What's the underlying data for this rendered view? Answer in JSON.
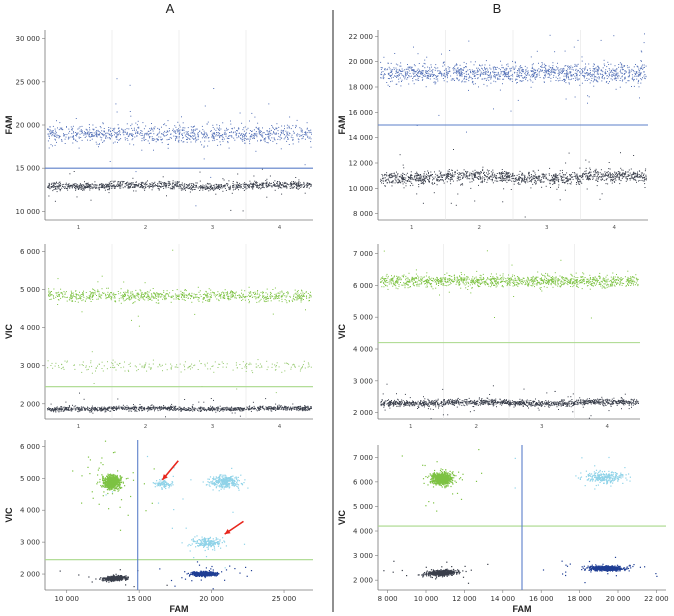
{
  "panel_titles": [
    "A",
    "B"
  ],
  "colors": {
    "fam_positive": "#5673b8",
    "vic_positive": "#7dc243",
    "double_positive": "#8fd3e8",
    "negative": "#3a3f4b",
    "fam_only": "#1f3e94",
    "threshold_fam": "#5b7fc9",
    "threshold_vic": "#a8d88a",
    "arrow": "#e8261c"
  },
  "chart_data": [
    {
      "id": "A-fam",
      "type": "scatter",
      "panel": "A",
      "ylabel": "FAM",
      "ylim": [
        9000,
        31000
      ],
      "yticks": [
        10000,
        15000,
        20000,
        25000,
        30000
      ],
      "ytick_labels": [
        "10 000",
        "15 000",
        "20 000",
        "25 000",
        "30 000"
      ],
      "xtick_labels": [
        "1",
        "2",
        "3",
        "4"
      ],
      "threshold": 15000,
      "series": [
        {
          "name": "positive",
          "color": "#5673b8",
          "center": 19000,
          "spread": 1000,
          "count": 1000
        },
        {
          "name": "negative",
          "color": "#3a3f4b",
          "center": 13000,
          "spread": 400,
          "count": 1100
        }
      ]
    },
    {
      "id": "A-vic",
      "type": "scatter",
      "panel": "A",
      "ylabel": "VIC",
      "ylim": [
        1600,
        6200
      ],
      "yticks": [
        2000,
        3000,
        4000,
        5000,
        6000
      ],
      "ytick_labels": [
        "2 000",
        "3 000",
        "4 000",
        "5 000",
        "6 000"
      ],
      "xtick_labels": [
        "1",
        "2",
        "3",
        "4"
      ],
      "threshold": 2450,
      "series": [
        {
          "name": "vic-positive",
          "color": "#7dc243",
          "center": 4850,
          "spread": 140,
          "count": 850
        },
        {
          "name": "double-positive",
          "color": "#92c76a",
          "center": 3000,
          "spread": 140,
          "count": 220
        },
        {
          "name": "negative",
          "color": "#3a3f4b",
          "center": 1880,
          "spread": 55,
          "count": 1100
        }
      ]
    },
    {
      "id": "A-2d",
      "type": "scatter",
      "panel": "A",
      "xlabel": "FAM",
      "ylabel": "VIC",
      "xlim": [
        8500,
        27000
      ],
      "ylim": [
        1500,
        6200
      ],
      "xticks": [
        10000,
        15000,
        20000,
        25000
      ],
      "xtick_labels": [
        "10 000",
        "15 000",
        "20 000",
        "25 000"
      ],
      "yticks": [
        2000,
        3000,
        4000,
        5000,
        6000
      ],
      "ytick_labels": [
        "2 000",
        "3 000",
        "4 000",
        "5 000",
        "6 000"
      ],
      "threshold_x": 14900,
      "threshold_y": 2450,
      "clusters": [
        {
          "name": "vic-only",
          "color": "#7dc243",
          "x": 13100,
          "y": 4900,
          "sx": 500,
          "sy": 180,
          "count": 700
        },
        {
          "name": "double-upper",
          "color": "#8fd3e8",
          "x": 16600,
          "y": 4850,
          "sx": 500,
          "sy": 120,
          "count": 100
        },
        {
          "name": "double-right",
          "color": "#8fd3e8",
          "x": 20900,
          "y": 4900,
          "sx": 900,
          "sy": 170,
          "count": 300
        },
        {
          "name": "double-lower",
          "color": "#8fd3e8",
          "x": 19700,
          "y": 3000,
          "sx": 800,
          "sy": 150,
          "count": 200
        },
        {
          "name": "negative",
          "color": "#3a3f4b",
          "x": 13300,
          "y": 1880,
          "sx": 600,
          "sy": 55,
          "count": 500
        },
        {
          "name": "fam-only",
          "color": "#1f3e94",
          "x": 19500,
          "y": 2020,
          "sx": 700,
          "sy": 55,
          "count": 500
        }
      ],
      "arrows": [
        {
          "from": [
            17700,
            5550
          ],
          "to": [
            16600,
            4950
          ]
        },
        {
          "from": [
            22200,
            3650
          ],
          "to": [
            20900,
            3250
          ]
        }
      ]
    },
    {
      "id": "B-fam",
      "type": "scatter",
      "panel": "B",
      "ylabel": "FAM",
      "ylim": [
        7500,
        22500
      ],
      "yticks": [
        8000,
        10000,
        12000,
        14000,
        16000,
        18000,
        20000,
        22000
      ],
      "ytick_labels": [
        "8 000",
        "10 000",
        "12 000",
        "14 000",
        "16 000",
        "18 000",
        "20 000",
        "22 000"
      ],
      "xtick_labels": [
        "1",
        "2",
        "3",
        "4"
      ],
      "threshold": 15000,
      "series": [
        {
          "name": "positive",
          "color": "#5673b8",
          "center": 19100,
          "spread": 700,
          "count": 1300
        },
        {
          "name": "negative",
          "color": "#3a3f4b",
          "center": 10900,
          "spread": 450,
          "count": 1300
        }
      ]
    },
    {
      "id": "B-vic",
      "type": "scatter",
      "panel": "B",
      "ylabel": "VIC",
      "ylim": [
        1800,
        7300
      ],
      "yticks": [
        2000,
        3000,
        4000,
        5000,
        6000,
        7000
      ],
      "ytick_labels": [
        "2 000",
        "3 000",
        "4 000",
        "5 000",
        "6 000",
        "7 000"
      ],
      "xtick_labels": [
        "1",
        "2",
        "3",
        "4"
      ],
      "threshold": 4200,
      "series": [
        {
          "name": "vic-positive",
          "color": "#7dc243",
          "center": 6150,
          "spread": 170,
          "count": 1200
        },
        {
          "name": "negative",
          "color": "#3a3f4b",
          "center": 2320,
          "spread": 90,
          "count": 1300
        }
      ]
    },
    {
      "id": "B-2d",
      "type": "scatter",
      "panel": "B",
      "xlabel": "FAM",
      "ylabel": "VIC",
      "xlim": [
        7500,
        22500
      ],
      "ylim": [
        1600,
        7500
      ],
      "xticks": [
        8000,
        10000,
        12000,
        14000,
        16000,
        18000,
        20000,
        22000
      ],
      "xtick_labels": [
        "8 000",
        "10 000",
        "12 000",
        "14 000",
        "16 000",
        "18 000",
        "20 000",
        "22 000"
      ],
      "yticks": [
        2000,
        3000,
        4000,
        5000,
        6000,
        7000
      ],
      "ytick_labels": [
        "2 000",
        "3 000",
        "4 000",
        "5 000",
        "6 000",
        "7 000"
      ],
      "threshold_x": 15000,
      "threshold_y": 4200,
      "clusters": [
        {
          "name": "vic-only",
          "color": "#7dc243",
          "x": 10800,
          "y": 6150,
          "sx": 450,
          "sy": 200,
          "count": 700
        },
        {
          "name": "double",
          "color": "#8fd3e8",
          "x": 19300,
          "y": 6200,
          "sx": 800,
          "sy": 180,
          "count": 260
        },
        {
          "name": "negative",
          "color": "#3a3f4b",
          "x": 10800,
          "y": 2320,
          "sx": 650,
          "sy": 90,
          "count": 500
        },
        {
          "name": "fam-only",
          "color": "#1f3e94",
          "x": 19400,
          "y": 2500,
          "sx": 750,
          "sy": 80,
          "count": 600
        }
      ],
      "arrows": []
    }
  ]
}
